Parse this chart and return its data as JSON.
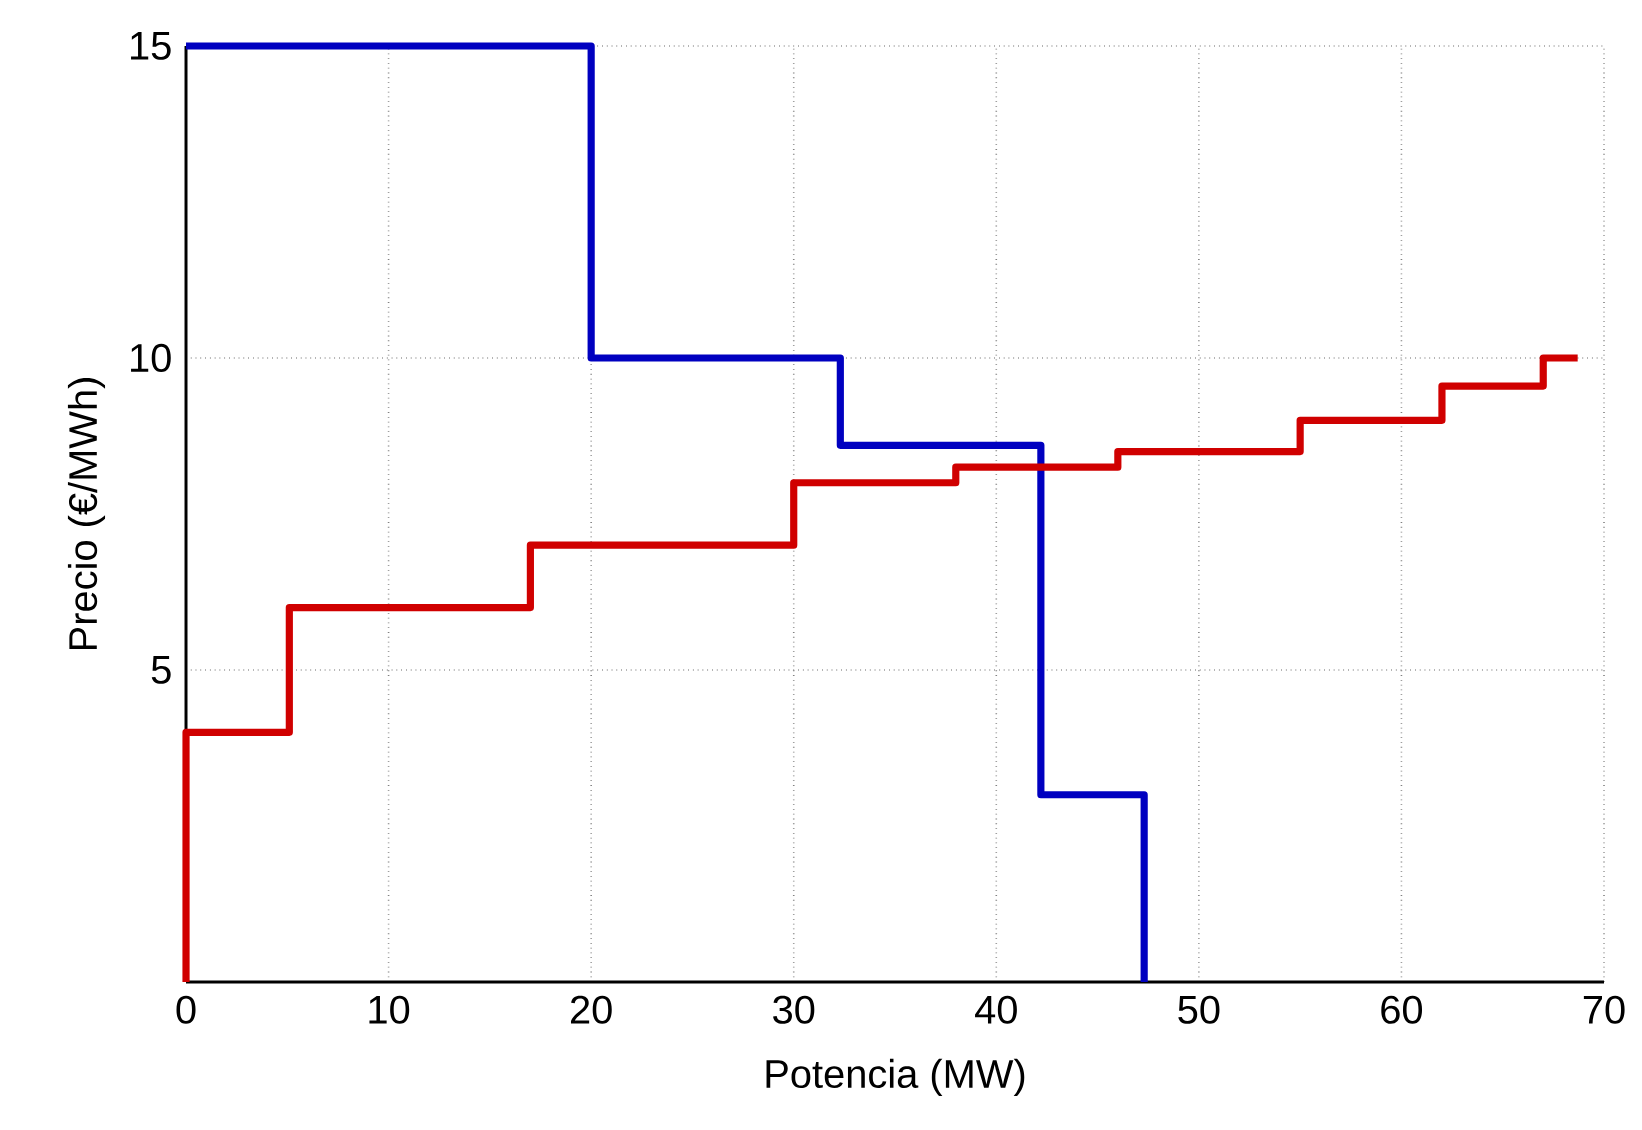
{
  "chart_data": {
    "type": "step",
    "xlabel": "Potencia (MW)",
    "ylabel": "Precio (€/MWh)",
    "xlim": [
      0,
      70
    ],
    "ylim": [
      0,
      15
    ],
    "xticks": [
      0,
      10,
      20,
      30,
      40,
      50,
      60,
      70
    ],
    "yticks": [
      5,
      10,
      15
    ],
    "grid": true,
    "marker": "none",
    "line_style": "solid",
    "series": [
      {
        "color": "#0000c0",
        "x": [
          0,
          20,
          32.3,
          42.2,
          47.3
        ],
        "values": [
          15,
          10,
          8.6,
          3,
          0
        ]
      },
      {
        "color": "#d00000",
        "x": [
          0,
          0,
          5.1,
          17,
          30,
          38,
          46,
          55,
          62,
          67,
          68.7
        ],
        "values": [
          0,
          4,
          6,
          7,
          8,
          8.25,
          8.5,
          9,
          9.55,
          10,
          10
        ]
      }
    ]
  }
}
